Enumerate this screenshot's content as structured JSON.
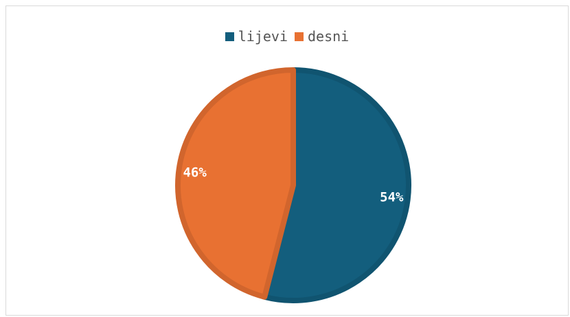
{
  "chart_data": {
    "type": "pie",
    "title": "",
    "legend_placement": "top",
    "categories": [
      "lijevi",
      "desni"
    ],
    "values": [
      54,
      46
    ],
    "data_labels": [
      "54%",
      "46%"
    ],
    "colors": [
      "#135e7d",
      "#e87132"
    ],
    "border_colors": [
      "#105470",
      "#d1652d"
    ]
  }
}
